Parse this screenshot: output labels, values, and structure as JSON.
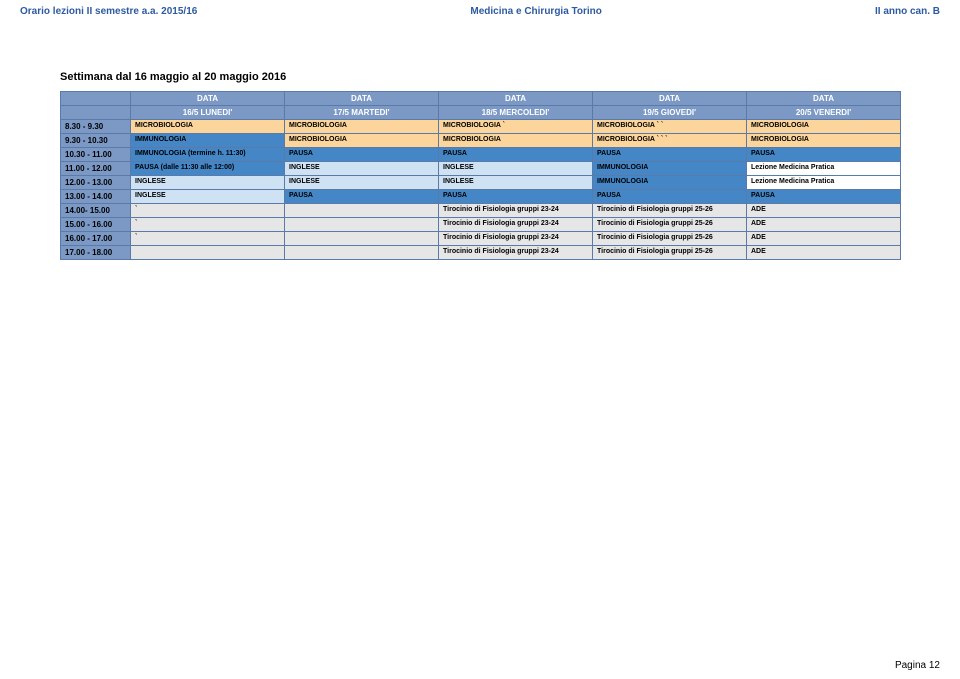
{
  "header": {
    "left": "Orario lezioni II semestre a.a. 2015/16",
    "center": "Medicina e Chirurgia Torino",
    "right": "II anno can. B"
  },
  "title": "Settimana dal 16 maggio al 20 maggio  2016",
  "dataLabel": "DATA",
  "days": [
    "16/5 LUNEDI'",
    "17/5 MARTEDI'",
    "18/5 MERCOLEDI'",
    "19/5 GIOVEDI'",
    "20/5 VENERDI'"
  ],
  "rows": [
    {
      "time": "8.30 - 9.30",
      "cells": [
        {
          "t": "MICROBIOLOGIA",
          "c": "peach"
        },
        {
          "t": "MICROBIOLOGIA",
          "c": "peach"
        },
        {
          "t": "MICROBIOLOGIA `",
          "c": "peach"
        },
        {
          "t": "MICROBIOLOGIA ` `",
          "c": "peach"
        },
        {
          "t": "MICROBIOLOGIA",
          "c": "peach"
        }
      ]
    },
    {
      "time": "9.30 - 10.30",
      "cells": [
        {
          "t": "IMMUNOLOGIA",
          "c": "blue"
        },
        {
          "t": "MICROBIOLOGIA",
          "c": "peach"
        },
        {
          "t": "MICROBIOLOGIA",
          "c": "peach"
        },
        {
          "t": "MICROBIOLOGIA ` ` `",
          "c": "peach"
        },
        {
          "t": "MICROBIOLOGIA",
          "c": "peach"
        }
      ]
    },
    {
      "time": "10.30 - 11.00",
      "cells": [
        {
          "t": "IMMUNOLOGIA (termine h. 11:30)",
          "c": "blue"
        },
        {
          "t": "PAUSA",
          "c": "blue"
        },
        {
          "t": "PAUSA",
          "c": "blue"
        },
        {
          "t": "PAUSA",
          "c": "blue"
        },
        {
          "t": "PAUSA",
          "c": "blue"
        }
      ]
    },
    {
      "time": "11.00 - 12.00",
      "cells": [
        {
          "t": "PAUSA (dalle 11:30 alle 12:00)",
          "c": "blue"
        },
        {
          "t": "INGLESE",
          "c": "lightblue"
        },
        {
          "t": "INGLESE",
          "c": "lightblue"
        },
        {
          "t": "IMMUNOLOGIA",
          "c": "blue"
        },
        {
          "t": "Lezione Medicina Pratica",
          "c": "white"
        }
      ]
    },
    {
      "time": "12.00 - 13.00",
      "cells": [
        {
          "t": "INGLESE",
          "c": "lightblue"
        },
        {
          "t": "INGLESE",
          "c": "lightblue"
        },
        {
          "t": "INGLESE",
          "c": "lightblue"
        },
        {
          "t": "IMMUNOLOGIA",
          "c": "blue"
        },
        {
          "t": "Lezione Medicina Pratica",
          "c": "white"
        }
      ]
    },
    {
      "time": "13.00 - 14.00",
      "cells": [
        {
          "t": "INGLESE",
          "c": "lightblue"
        },
        {
          "t": "PAUSA",
          "c": "blue"
        },
        {
          "t": "PAUSA",
          "c": "blue"
        },
        {
          "t": "PAUSA",
          "c": "blue"
        },
        {
          "t": "PAUSA",
          "c": "blue"
        }
      ]
    },
    {
      "time": "14.00- 15.00",
      "cells": [
        {
          "t": "`",
          "c": "grey"
        },
        {
          "t": "",
          "c": "grey"
        },
        {
          "t": "Tirocinio di Fisiologia gruppi 23-24",
          "c": "grey"
        },
        {
          "t": "Tirocinio di Fisiologia gruppi 25-26",
          "c": "grey"
        },
        {
          "t": "ADE",
          "c": "grey"
        }
      ]
    },
    {
      "time": "15.00 - 16.00",
      "cells": [
        {
          "t": "`",
          "c": "grey"
        },
        {
          "t": "",
          "c": "grey"
        },
        {
          "t": "Tirocinio di Fisiologia gruppi 23-24",
          "c": "grey"
        },
        {
          "t": "Tirocinio di Fisiologia gruppi 25-26",
          "c": "grey"
        },
        {
          "t": "ADE",
          "c": "grey"
        }
      ]
    },
    {
      "time": "16.00 - 17.00",
      "cells": [
        {
          "t": "`",
          "c": "grey"
        },
        {
          "t": "",
          "c": "grey"
        },
        {
          "t": "Tirocinio di Fisiologia gruppi 23-24",
          "c": "grey"
        },
        {
          "t": "Tirocinio di Fisiologia gruppi 25-26",
          "c": "grey"
        },
        {
          "t": "ADE",
          "c": "grey"
        }
      ]
    },
    {
      "time": "17.00 - 18.00",
      "cells": [
        {
          "t": "",
          "c": "grey"
        },
        {
          "t": "",
          "c": "grey"
        },
        {
          "t": "Tirocinio di Fisiologia gruppi 23-24",
          "c": "grey"
        },
        {
          "t": "Tirocinio di Fisiologia gruppi 25-26",
          "c": "grey"
        },
        {
          "t": "ADE",
          "c": "grey"
        }
      ]
    }
  ],
  "footer": "Pagina 12"
}
